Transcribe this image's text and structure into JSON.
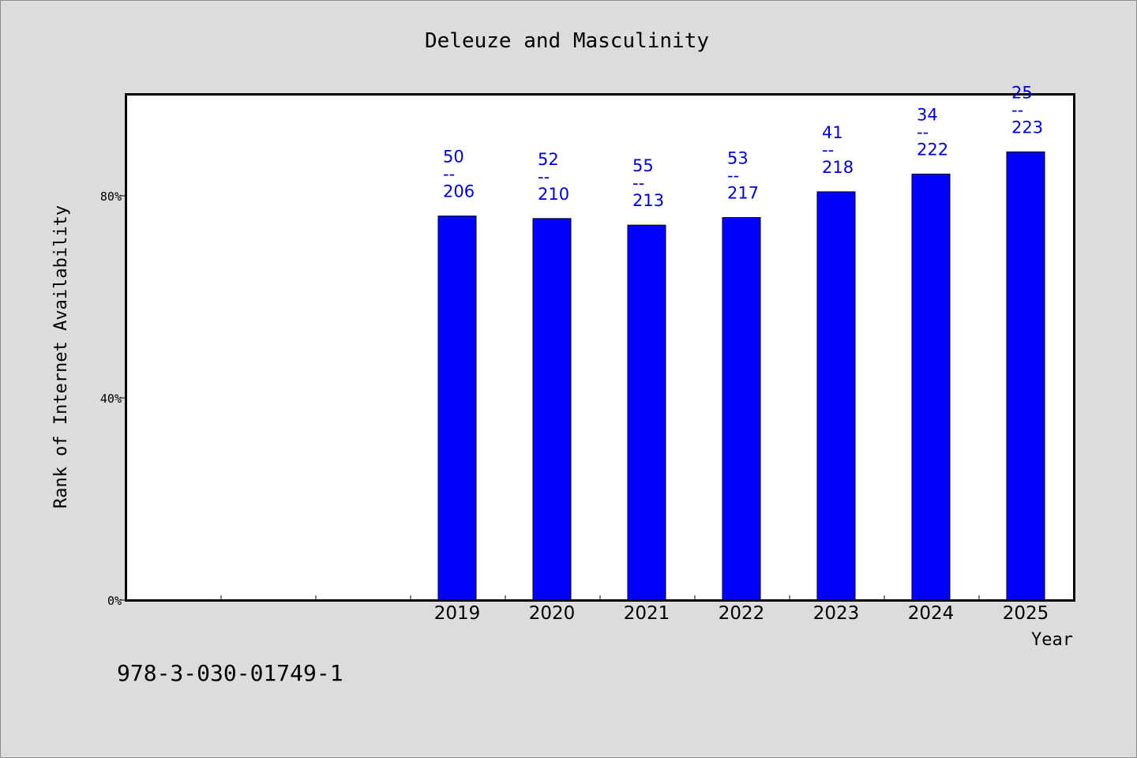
{
  "page": {
    "identifier": "978-3-030-01749-1",
    "colors": {
      "background": "#dcdcdc",
      "bar": "#0000ff",
      "label": "#0000cc",
      "plot_bg": "#ffffff"
    }
  },
  "chart_data": {
    "type": "bar",
    "title": "Deleuze and Masculinity",
    "xlabel": "Year",
    "ylabel": "Rank of Internet Availability",
    "categories": [
      "",
      "",
      "",
      "2019",
      "2020",
      "2021",
      "2022",
      "2023",
      "2024",
      "2025"
    ],
    "values": [
      null,
      null,
      null,
      76,
      75.5,
      74.2,
      75.7,
      80.8,
      84.3,
      88.7
    ],
    "value_labels": [
      null,
      null,
      null,
      [
        "50",
        "--",
        "206"
      ],
      [
        "52",
        "--",
        "210"
      ],
      [
        "55",
        "--",
        "213"
      ],
      [
        "53",
        "--",
        "217"
      ],
      [
        "41",
        "--",
        "218"
      ],
      [
        "34",
        "--",
        "222"
      ],
      [
        "25",
        "--",
        "223"
      ]
    ],
    "ylim": [
      0,
      100
    ],
    "yticks": [
      0,
      40,
      80
    ],
    "ytick_labels": [
      "0%",
      "40%",
      "80%"
    ],
    "grid": false,
    "legend": "none"
  }
}
